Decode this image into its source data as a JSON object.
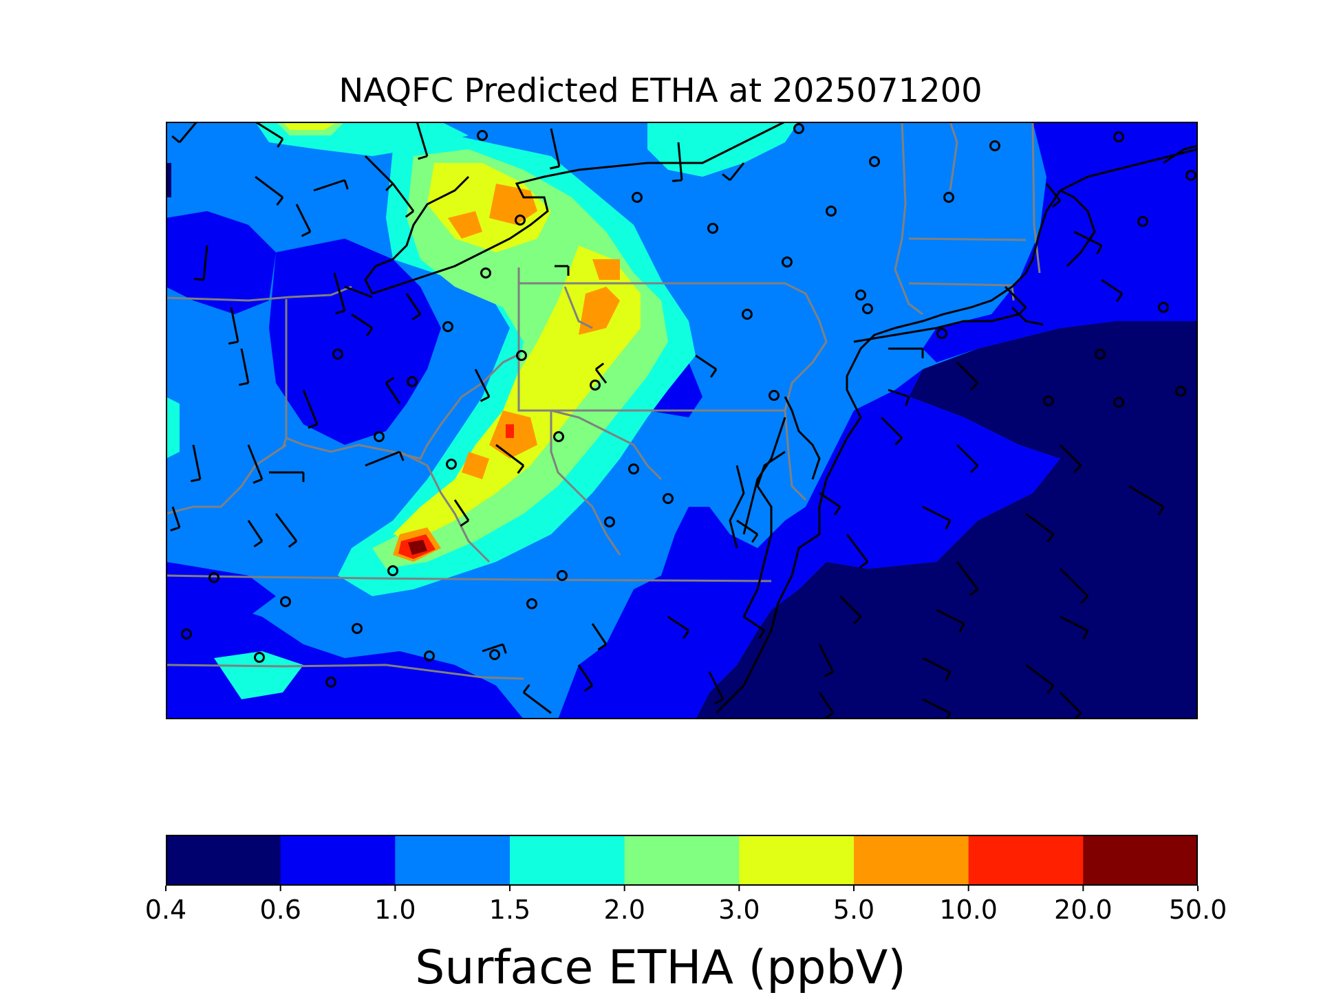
{
  "title": "NAQFC Predicted ETHA at 2025071200",
  "colorbar": {
    "label": "Surface ETHA (ppbV)",
    "ticks": [
      "0.4",
      "0.6",
      "1.0",
      "1.5",
      "2.0",
      "3.0",
      "5.0",
      "10.0",
      "20.0",
      "50.0"
    ],
    "colors": [
      "#00006e",
      "#0000f5",
      "#0080ff",
      "#10ffdf",
      "#80ff80",
      "#e0ff15",
      "#ff9800",
      "#ff2000",
      "#800000"
    ]
  },
  "legend_bins": [
    {
      "min": 0.4,
      "max": 0.6
    },
    {
      "min": 0.6,
      "max": 1.0
    },
    {
      "min": 1.0,
      "max": 1.5
    },
    {
      "min": 1.5,
      "max": 2.0
    },
    {
      "min": 2.0,
      "max": 3.0
    },
    {
      "min": 3.0,
      "max": 5.0
    },
    {
      "min": 5.0,
      "max": 10.0
    },
    {
      "min": 10.0,
      "max": 20.0
    },
    {
      "min": 20.0,
      "max": 50.0
    }
  ],
  "layers": {
    "boundary_color": "#808080",
    "coastline_color": "#000000",
    "wind_barb_color": "#000000"
  }
}
